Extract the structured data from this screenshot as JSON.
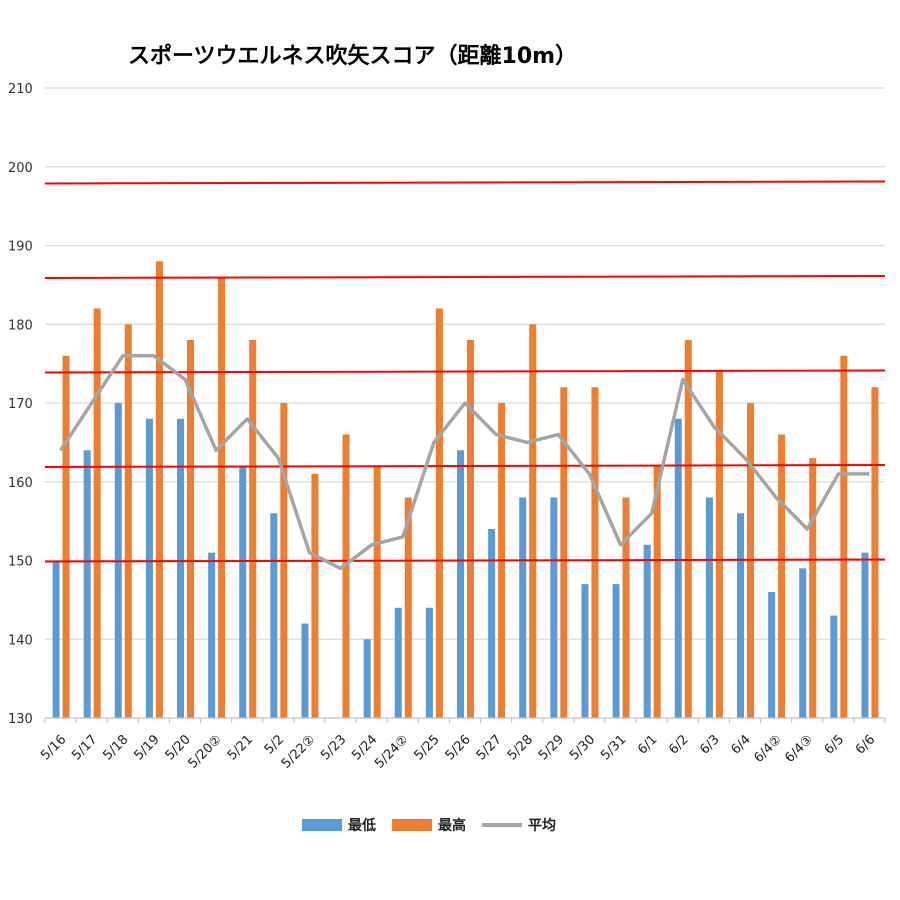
{
  "chart_data": {
    "type": "bar",
    "title": "スポーツウエルネス吹矢スコア（距離10m）",
    "xlabel": "",
    "ylabel": "",
    "ylim": [
      130,
      210
    ],
    "yticks": [
      130,
      140,
      150,
      160,
      170,
      180,
      190,
      200,
      210
    ],
    "grid": true,
    "legend_position": "bottom",
    "categories": [
      "5/16",
      "5/17",
      "5/18",
      "5/19",
      "5/20",
      "5/20②",
      "5/21",
      "5/2",
      "5/22②",
      "5/23",
      "5/24",
      "5/24②",
      "5/25",
      "5/26",
      "5/27",
      "5/28",
      "5/29",
      "5/30",
      "5/31",
      "6/1",
      "6/2",
      "6/3",
      "6/4",
      "6/4②",
      "6/4③",
      "6/5",
      "6/6"
    ],
    "series": [
      {
        "name": "最低",
        "type": "bar",
        "color": "#5b9bd5",
        "values": [
          150,
          164,
          170,
          168,
          168,
          151,
          162,
          156,
          142,
          null,
          140,
          144,
          144,
          164,
          154,
          158,
          158,
          147,
          147,
          152,
          168,
          158,
          156,
          146,
          149,
          143,
          151
        ]
      },
      {
        "name": "最高",
        "type": "bar",
        "color": "#ed7d31",
        "values": [
          176,
          182,
          180,
          188,
          178,
          186,
          178,
          170,
          161,
          166,
          162,
          158,
          182,
          178,
          170,
          180,
          172,
          172,
          158,
          162,
          178,
          174,
          170,
          166,
          163,
          176,
          172
        ]
      },
      {
        "name": "平均",
        "type": "line",
        "color": "#a5a5a5",
        "values": [
          164,
          170,
          176,
          176,
          173,
          164,
          168,
          163,
          151,
          149,
          152,
          153,
          165,
          170,
          166,
          165,
          166,
          161,
          152,
          156,
          173,
          167,
          163,
          158,
          154,
          161,
          161
        ]
      }
    ],
    "reference_lines": {
      "color": "#ff0000",
      "values": [
        150,
        162,
        174,
        186,
        198
      ]
    }
  }
}
